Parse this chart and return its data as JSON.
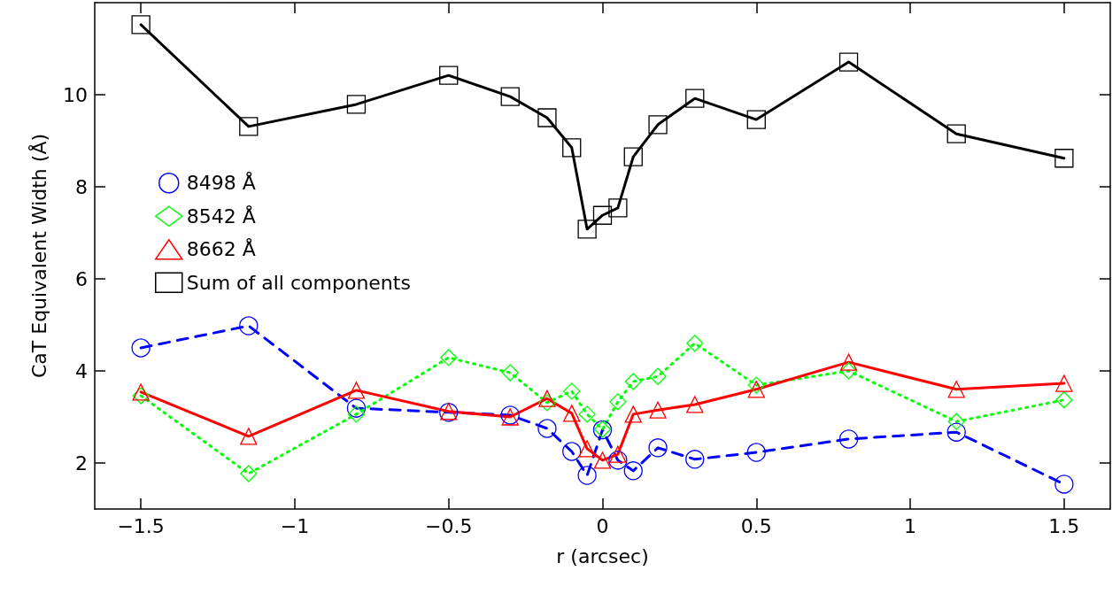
{
  "chart_data": {
    "type": "line",
    "xlabel": "r (arcsec)",
    "ylabel": "CaT Equivalent Width (Å)",
    "x": [
      -1.5,
      -1.15,
      -0.8,
      -0.5,
      -0.3,
      -0.18,
      -0.1,
      -0.05,
      0,
      0.05,
      0.1,
      0.18,
      0.3,
      0.5,
      0.8,
      1.15,
      1.5
    ],
    "series": [
      {
        "name": "8498 Å",
        "color": "#0000ff",
        "marker": "circle",
        "line_style": "dashed",
        "values": [
          4.5,
          4.98,
          3.19,
          3.1,
          3.04,
          2.75,
          2.25,
          1.73,
          2.72,
          2.06,
          1.83,
          2.33,
          2.08,
          2.23,
          2.52,
          2.67,
          1.54
        ]
      },
      {
        "name": "8542 Å",
        "color": "#00ff00",
        "marker": "diamond",
        "line_style": "dotted",
        "values": [
          3.46,
          1.77,
          3.06,
          4.29,
          3.96,
          3.31,
          3.56,
          3.06,
          2.73,
          3.33,
          3.77,
          3.88,
          4.6,
          3.69,
          4.0,
          2.9,
          3.37
        ]
      },
      {
        "name": "8662 Å",
        "color": "#ff0000",
        "marker": "triangle",
        "line_style": "solid",
        "values": [
          3.54,
          2.58,
          3.58,
          3.12,
          3.0,
          3.4,
          3.08,
          2.31,
          2.06,
          2.19,
          3.06,
          3.15,
          3.27,
          3.6,
          4.19,
          3.6,
          3.73
        ]
      },
      {
        "name": "Sum of all components",
        "color": "#000000",
        "marker": "square",
        "line_style": "solid",
        "values": [
          11.52,
          9.31,
          9.79,
          10.42,
          9.96,
          9.5,
          8.85,
          7.08,
          7.38,
          7.54,
          8.65,
          9.35,
          9.92,
          9.46,
          10.71,
          9.15,
          8.62
        ]
      }
    ],
    "xlim": [
      -1.65,
      1.65
    ],
    "xticks": [
      -1.5,
      -1,
      -0.5,
      0,
      0.5,
      1,
      1.5
    ],
    "ylim": [
      1,
      12
    ],
    "yticks": [
      2,
      4,
      6,
      8,
      10
    ],
    "grid": false,
    "legend": "top left"
  }
}
